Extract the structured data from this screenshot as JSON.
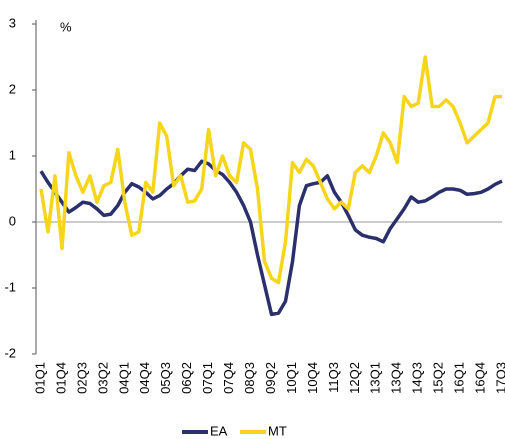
{
  "chart_data": {
    "type": "line",
    "y_label": "%",
    "categories": [
      "01Q1",
      null,
      null,
      "01Q4",
      null,
      null,
      "02Q3",
      null,
      null,
      "03Q2",
      null,
      null,
      "04Q1",
      null,
      null,
      "04Q4",
      null,
      null,
      "05Q3",
      null,
      null,
      "06Q2",
      null,
      null,
      "07Q1",
      null,
      null,
      "07Q4",
      null,
      null,
      "08Q3",
      null,
      null,
      "09Q2",
      null,
      null,
      "10Q1",
      null,
      null,
      "10Q4",
      null,
      null,
      "11Q3",
      null,
      null,
      "12Q2",
      null,
      null,
      "13Q1",
      null,
      null,
      "13Q4",
      null,
      null,
      "14Q3",
      null,
      null,
      "15Q2",
      null,
      null,
      "16Q1",
      null,
      null,
      "16Q4",
      null,
      null,
      "17Q3"
    ],
    "series": [
      {
        "name": "EA",
        "color": "#2b2f6b",
        "values": [
          0.77,
          0.6,
          0.45,
          0.3,
          0.15,
          0.22,
          0.3,
          0.28,
          0.2,
          0.1,
          0.12,
          0.25,
          0.45,
          0.58,
          0.53,
          0.45,
          0.35,
          0.4,
          0.5,
          0.58,
          0.7,
          0.8,
          0.78,
          0.92,
          0.88,
          0.78,
          0.72,
          0.6,
          0.45,
          0.25,
          0.0,
          -0.5,
          -0.95,
          -1.4,
          -1.38,
          -1.2,
          -0.6,
          0.25,
          0.55,
          0.58,
          0.6,
          0.7,
          0.45,
          0.3,
          0.1,
          -0.12,
          -0.2,
          -0.23,
          -0.25,
          -0.3,
          -0.1,
          0.05,
          0.2,
          0.38,
          0.3,
          0.32,
          0.38,
          0.45,
          0.5,
          0.5,
          0.48,
          0.42,
          0.43,
          0.45,
          0.5,
          0.57,
          0.62
        ]
      },
      {
        "name": "MT",
        "color": "#f7d51d",
        "values": [
          0.5,
          -0.15,
          0.7,
          -0.4,
          1.05,
          0.7,
          0.45,
          0.7,
          0.3,
          0.55,
          0.6,
          1.1,
          0.3,
          -0.2,
          -0.15,
          0.6,
          0.45,
          1.5,
          1.3,
          0.55,
          0.7,
          0.3,
          0.32,
          0.5,
          1.4,
          0.7,
          1.0,
          0.7,
          0.6,
          1.2,
          1.1,
          0.5,
          -0.6,
          -0.85,
          -0.92,
          -0.3,
          0.9,
          0.75,
          0.95,
          0.85,
          0.6,
          0.35,
          0.2,
          0.3,
          0.2,
          0.75,
          0.85,
          0.75,
          1.0,
          1.35,
          1.2,
          0.9,
          1.9,
          1.75,
          1.8,
          2.5,
          1.75,
          1.75,
          1.85,
          1.75,
          1.5,
          1.2,
          1.3,
          1.4,
          1.5,
          1.9,
          1.9
        ]
      }
    ],
    "ylim": [
      -2,
      3
    ],
    "yticks": [
      -2,
      -1,
      0,
      1,
      2,
      3
    ],
    "grid": false
  }
}
